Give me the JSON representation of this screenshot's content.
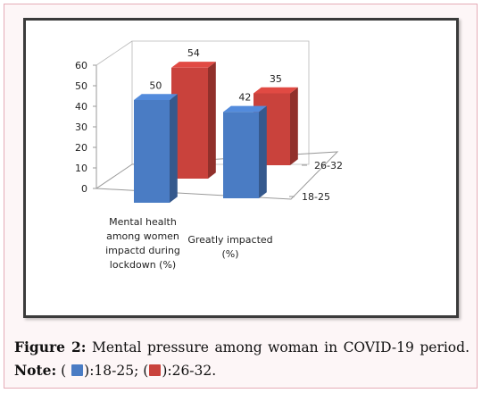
{
  "chart_data": {
    "type": "bar",
    "categories": [
      "Mental health among women impactd during lockdown (%)",
      "Greatly impacted (%)"
    ],
    "category_lines": [
      [
        "Mental health",
        "among women",
        "impactd during",
        "lockdown (%)"
      ],
      [
        "Greatly impacted",
        "(%)"
      ]
    ],
    "series": [
      {
        "name": "18-25",
        "values": [
          50,
          42
        ],
        "color": "#4a7cc4"
      },
      {
        "name": "26-32",
        "values": [
          54,
          35
        ],
        "color": "#c9423c"
      }
    ],
    "ylim": [
      0,
      60
    ],
    "yticks": [
      "0",
      "10",
      "20",
      "30",
      "40",
      "50",
      "60"
    ],
    "depth_labels": [
      "26-32",
      "18-25"
    ],
    "grid": false,
    "style": "3d-column"
  },
  "caption": {
    "figure_label": "Figure 2:",
    "text": " Mental pressure among woman in COVID-19 period. ",
    "note_label": "Note:",
    "legend_items": [
      {
        "open": " ( ",
        "color": "#4a7cc4",
        "label": "):18-25; ("
      },
      {
        "open": "",
        "color": "#c9423c",
        "label": "):26-32."
      }
    ]
  }
}
